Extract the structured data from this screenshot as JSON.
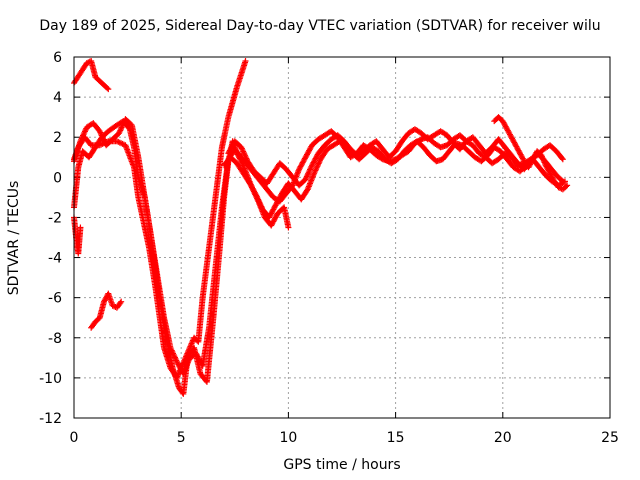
{
  "chart_data": {
    "type": "scatter",
    "title": "Day 189 of 2025, Sidereal Day-to-day VTEC variation (SDTVAR) for receiver wilu",
    "xlabel": "GPS time / hours",
    "ylabel": "SDTVAR / TECUs",
    "xlim": [
      0,
      25
    ],
    "ylim": [
      -12,
      6
    ],
    "xticks": [
      "0",
      "5",
      "10",
      "15",
      "20",
      "25"
    ],
    "yticks": [
      "-12",
      "-10",
      "-8",
      "-6",
      "-4",
      "-2",
      "0",
      "2",
      "4",
      "6"
    ],
    "grid": true,
    "marker": "+",
    "color": "#ff0000",
    "series": [
      {
        "x": [
          0.0,
          0.3,
          0.6,
          0.8,
          1.0,
          1.3,
          1.6
        ],
        "y": [
          4.7,
          5.2,
          5.7,
          5.8,
          5.0,
          4.7,
          4.4
        ]
      },
      {
        "x": [
          0.0,
          0.2,
          0.5,
          0.8,
          1.2,
          1.6,
          2.0,
          2.4,
          2.8,
          3.0,
          3.2,
          3.5,
          3.8,
          4.0,
          4.2,
          4.5,
          4.8,
          5.0,
          5.2,
          5.4,
          5.6,
          5.8,
          6.0,
          6.3,
          6.6,
          6.9,
          7.2,
          7.6,
          8.0
        ],
        "y": [
          0.9,
          1.5,
          2.0,
          1.6,
          1.6,
          1.8,
          1.8,
          1.6,
          0.5,
          -1.0,
          -2.0,
          -3.5,
          -5.5,
          -7.0,
          -8.5,
          -9.5,
          -10.0,
          -9.5,
          -9.0,
          -8.5,
          -8.0,
          -8.2,
          -6.0,
          -3.5,
          -1.0,
          1.5,
          3.0,
          4.5,
          5.8
        ]
      },
      {
        "x": [
          0.0,
          0.2,
          0.4,
          0.7,
          1.0,
          1.3,
          1.6,
          2.0,
          2.3,
          2.6,
          2.8,
          3.0,
          3.3,
          3.6,
          3.8,
          4.0,
          4.3,
          4.6,
          4.9,
          5.1,
          5.3,
          5.6,
          5.9,
          6.2,
          6.5,
          6.8,
          7.0,
          7.2,
          7.4,
          7.6,
          7.8,
          8.0,
          8.3,
          8.6,
          8.9,
          9.2,
          9.5,
          9.8,
          10.0
        ],
        "y": [
          -1.5,
          0.5,
          1.3,
          1.0,
          1.5,
          2.0,
          2.3,
          2.6,
          2.8,
          2.4,
          1.5,
          0.0,
          -1.0,
          -3.0,
          -4.5,
          -6.0,
          -8.0,
          -9.5,
          -10.5,
          -10.8,
          -9.0,
          -8.5,
          -9.8,
          -10.2,
          -7.0,
          -3.5,
          -1.0,
          0.8,
          1.8,
          1.2,
          0.8,
          0.3,
          -0.5,
          -1.2,
          -2.0,
          -2.4,
          -1.8,
          -1.5,
          -2.5
        ]
      },
      {
        "x": [
          0.0,
          0.3,
          0.6,
          0.9,
          1.2,
          1.5,
          1.8,
          2.1,
          2.4,
          2.7,
          3.0,
          3.3,
          3.6,
          3.9,
          4.2,
          4.5,
          4.8,
          5.1,
          5.4,
          5.7,
          6.0,
          6.3,
          6.6,
          6.9,
          7.2,
          7.5,
          7.8,
          8.1,
          8.4,
          8.7,
          9.0,
          9.3,
          9.6,
          9.9,
          10.2,
          10.5,
          10.8,
          11.1,
          11.4,
          11.7,
          12.0,
          12.3,
          12.6,
          12.9,
          13.2,
          13.5,
          13.8,
          14.1,
          14.4,
          14.7,
          15.0,
          15.3,
          15.6,
          15.9,
          16.2,
          16.5,
          16.8,
          17.1,
          17.4,
          17.7,
          18.0,
          18.3,
          18.6,
          18.9,
          19.2,
          19.5,
          19.8,
          20.1,
          20.4,
          20.7,
          21.0,
          21.3,
          21.6,
          21.9,
          22.2,
          22.5,
          22.8
        ],
        "y": [
          0.8,
          1.8,
          2.5,
          2.7,
          2.3,
          1.6,
          1.9,
          2.2,
          2.9,
          2.6,
          1.0,
          -1.0,
          -3.0,
          -5.0,
          -7.0,
          -8.5,
          -9.2,
          -9.8,
          -9.0,
          -8.8,
          -9.4,
          -7.5,
          -4.5,
          -1.5,
          0.9,
          1.4,
          1.0,
          0.6,
          0.2,
          -0.2,
          -0.6,
          -1.0,
          -1.2,
          -0.8,
          -0.4,
          0.4,
          1.0,
          1.6,
          1.9,
          2.1,
          2.3,
          2.0,
          1.5,
          1.0,
          1.2,
          1.6,
          1.4,
          1.1,
          0.9,
          0.8,
          0.9,
          1.1,
          1.3,
          1.7,
          1.9,
          2.0,
          1.7,
          1.5,
          1.6,
          1.9,
          2.1,
          1.8,
          1.6,
          1.2,
          1.0,
          0.7,
          0.9,
          1.2,
          1.0,
          0.6,
          0.7,
          0.9,
          1.1,
          1.4,
          1.6,
          1.3,
          0.9
        ]
      },
      {
        "x": [
          7.2,
          7.5,
          7.8,
          8.1,
          8.4,
          8.7,
          9.0,
          9.3,
          9.6,
          9.9,
          10.2,
          10.5,
          10.8,
          11.1,
          11.4,
          11.7,
          12.0,
          12.3,
          12.6,
          12.9,
          13.2,
          13.5,
          13.8,
          14.1,
          14.4,
          14.7,
          15.0,
          15.3,
          15.6,
          15.9,
          16.2,
          16.5,
          16.8,
          17.1,
          17.4,
          17.7,
          18.0,
          18.3,
          18.6,
          18.9,
          19.2,
          19.5,
          19.8,
          20.1,
          20.4,
          20.7,
          21.0,
          21.3,
          21.6,
          21.9,
          22.2,
          22.5,
          22.8
        ],
        "y": [
          1.2,
          1.8,
          1.5,
          0.8,
          0.3,
          0.0,
          -0.3,
          0.2,
          0.7,
          0.4,
          0.0,
          -0.4,
          -0.1,
          0.6,
          1.2,
          1.6,
          1.9,
          2.1,
          1.8,
          1.4,
          1.1,
          1.3,
          1.6,
          1.8,
          1.4,
          1.0,
          1.3,
          1.8,
          2.2,
          2.4,
          2.2,
          1.9,
          2.1,
          2.3,
          2.1,
          1.7,
          1.4,
          1.8,
          2.0,
          1.6,
          1.2,
          1.5,
          1.9,
          1.5,
          1.1,
          0.7,
          0.4,
          0.8,
          1.2,
          0.9,
          0.5,
          0.1,
          -0.2
        ]
      },
      {
        "x": [
          7.0,
          7.3,
          7.6,
          7.9,
          8.2,
          8.5,
          8.8,
          9.1,
          9.4,
          9.7,
          10.0,
          10.3,
          10.6,
          10.9,
          11.2,
          11.5,
          11.8,
          12.1,
          12.4,
          12.7,
          13.0,
          13.3,
          13.6,
          13.9,
          14.2,
          14.5,
          14.8,
          15.1,
          15.4,
          15.7,
          16.0,
          16.3,
          16.6,
          16.9,
          17.2,
          17.5,
          17.8,
          18.1,
          18.4,
          18.7,
          19.0,
          19.3,
          19.6,
          19.9,
          20.2,
          20.5,
          20.8,
          21.1,
          21.4,
          21.7,
          22.0,
          22.3,
          22.6,
          22.9
        ],
        "y": [
          0.6,
          1.0,
          0.7,
          0.2,
          -0.3,
          -0.9,
          -1.6,
          -2.0,
          -1.4,
          -0.8,
          -0.3,
          -0.7,
          -1.1,
          -0.6,
          0.2,
          0.9,
          1.4,
          1.6,
          1.8,
          1.5,
          1.2,
          0.9,
          1.2,
          1.5,
          1.3,
          0.9,
          0.7,
          0.9,
          1.3,
          1.6,
          1.8,
          1.5,
          1.1,
          0.8,
          0.9,
          1.3,
          1.7,
          1.6,
          1.3,
          1.0,
          0.8,
          1.1,
          1.5,
          1.3,
          0.9,
          0.5,
          0.3,
          0.6,
          0.9,
          0.5,
          0.1,
          -0.2,
          -0.4,
          -0.2
        ]
      },
      {
        "x": [
          19.6,
          19.8,
          20.0,
          20.2,
          20.4,
          20.6,
          20.8,
          21.0,
          21.2,
          21.4,
          21.6,
          21.8,
          22.0,
          22.2,
          22.4,
          22.6,
          22.8,
          23.0
        ],
        "y": [
          2.8,
          3.0,
          2.8,
          2.4,
          2.0,
          1.6,
          1.2,
          0.8,
          0.5,
          0.9,
          1.3,
          1.1,
          0.6,
          0.2,
          -0.2,
          -0.5,
          -0.6,
          -0.4
        ]
      },
      {
        "x": [
          0.8,
          1.0,
          1.2,
          1.4,
          1.6,
          1.8,
          2.0,
          2.2
        ],
        "y": [
          -7.5,
          -7.2,
          -7.0,
          -6.2,
          -5.8,
          -6.4,
          -6.5,
          -6.2
        ]
      },
      {
        "x": [
          0.0,
          0.1,
          0.2,
          0.3
        ],
        "y": [
          -2.0,
          -3.0,
          -3.8,
          -2.5
        ]
      }
    ]
  }
}
